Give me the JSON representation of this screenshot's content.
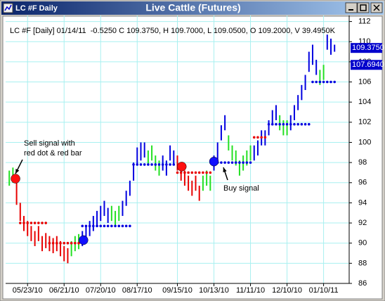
{
  "window_title": "LC #F Daily",
  "chart_data": {
    "type": "ohlc",
    "title": "Live Cattle (Futures)",
    "info": "LC #F [Daily] 01/14/11  -0.5250 C 109.3750, H 109.7000, L 109.0500, O 109.2000, V 39.4950K",
    "high": [
      97.2,
      97.5,
      96.5,
      94,
      92.7,
      92.2,
      91.7,
      91.2,
      91.7,
      90.7,
      91,
      90.7,
      90.5,
      90.7,
      90.2,
      89.7,
      89.5,
      90.2,
      90.7,
      90.9,
      91.2,
      91.7,
      92.2,
      92.7,
      93.2,
      93.7,
      94.2,
      93.5,
      93.7,
      93.2,
      93.7,
      94.2,
      95.2,
      96.2,
      98,
      99.5,
      100,
      100,
      99.2,
      99.7,
      98.7,
      98.2,
      98.7,
      98.2,
      99.7,
      99.2,
      98.7,
      97.7,
      97.2,
      96.7,
      96.2,
      96.7,
      95.7,
      96.7,
      97.2,
      96.7,
      98.7,
      100,
      101.7,
      102.7,
      100.7,
      99.7,
      99.2,
      98.2,
      98.7,
      99.2,
      99.7,
      99.7,
      100.2,
      101.2,
      101.2,
      102.2,
      103.2,
      103.7,
      102.7,
      102.2,
      102.2,
      102.7,
      103.7,
      104.7,
      105.7,
      106.7,
      109,
      109.7,
      108.2,
      107.2,
      107.7,
      110.7,
      110.3,
      109.7
    ],
    "low": [
      95.7,
      96,
      93.8,
      92.2,
      91.2,
      90.7,
      90.2,
      89.7,
      90.2,
      89.2,
      89.5,
      89.2,
      89,
      89.2,
      88.7,
      88.2,
      88,
      88.7,
      89.2,
      89.4,
      89.7,
      90.2,
      90.7,
      91.2,
      91.7,
      92.2,
      92.7,
      92,
      92.2,
      91.7,
      92.2,
      92.7,
      93.7,
      94.7,
      96.2,
      97.7,
      98.2,
      98.5,
      97.7,
      98.2,
      97.2,
      96.7,
      97.2,
      96.7,
      98.2,
      97.7,
      97.2,
      96.2,
      95.7,
      95.2,
      94.7,
      95.2,
      94.2,
      95.2,
      95.7,
      95.2,
      97.2,
      98.2,
      100.2,
      101.2,
      99.2,
      98.2,
      97.7,
      96.7,
      97.2,
      97.7,
      98.2,
      98.2,
      98.7,
      99.7,
      99.7,
      100.7,
      101.7,
      102.2,
      101.2,
      100.7,
      100.7,
      101.2,
      102.2,
      103.2,
      104.2,
      105.2,
      107,
      107.7,
      106.7,
      105.7,
      106.2,
      109.2,
      108.7,
      109
    ],
    "bar_colors": [
      "g",
      "g",
      "r",
      "r",
      "r",
      "r",
      "r",
      "r",
      "r",
      "r",
      "r",
      "r",
      "r",
      "r",
      "r",
      "r",
      "r",
      "g",
      "g",
      "g",
      "b",
      "b",
      "b",
      "b",
      "b",
      "b",
      "b",
      "b",
      "g",
      "g",
      "g",
      "b",
      "b",
      "b",
      "b",
      "b",
      "b",
      "b",
      "g",
      "g",
      "g",
      "g",
      "b",
      "b",
      "b",
      "b",
      "r",
      "r",
      "r",
      "r",
      "r",
      "r",
      "r",
      "g",
      "g",
      "g",
      "b",
      "b",
      "b",
      "b",
      "g",
      "g",
      "g",
      "g",
      "g",
      "g",
      "g",
      "b",
      "b",
      "b",
      "b",
      "b",
      "b",
      "b",
      "g",
      "g",
      "g",
      "b",
      "b",
      "b",
      "b",
      "b",
      "b",
      "b",
      "b",
      "g",
      "g",
      "b",
      "b",
      "b"
    ],
    "palette": {
      "g": "#22e022",
      "r": "#e80000",
      "b": "#0000e0"
    },
    "dots": [
      {
        "color": "#e80000",
        "values": [
          null,
          null,
          null,
          92,
          92,
          92,
          92,
          92,
          92,
          92,
          92,
          90,
          90,
          90,
          90,
          90,
          90,
          90,
          90,
          90,
          null,
          null,
          null,
          null,
          null,
          null,
          null,
          null,
          null,
          null,
          null,
          null,
          null,
          null,
          null,
          null,
          null,
          null,
          null,
          null,
          null,
          null,
          null,
          null,
          null,
          null,
          97,
          97,
          97,
          97,
          97,
          97,
          97,
          97,
          97,
          97,
          null,
          null,
          null,
          null,
          null,
          null,
          null,
          null,
          null,
          null,
          null,
          100.5,
          100.5,
          100.5,
          100.5,
          null,
          null,
          null,
          null,
          null,
          null,
          null,
          null,
          null,
          null,
          null,
          null,
          null,
          null,
          null,
          null,
          null,
          null,
          null
        ]
      },
      {
        "color": "#0000e0",
        "values": [
          null,
          null,
          null,
          null,
          null,
          null,
          null,
          null,
          null,
          null,
          null,
          null,
          null,
          null,
          null,
          null,
          null,
          null,
          null,
          null,
          91.7,
          91.7,
          91.7,
          91.7,
          91.7,
          91.7,
          91.7,
          91.7,
          91.7,
          91.7,
          91.7,
          91.7,
          91.7,
          91.7,
          97.8,
          97.8,
          97.8,
          97.8,
          97.8,
          97.8,
          97.8,
          97.8,
          97.8,
          97.8,
          97.8,
          97.8,
          null,
          null,
          null,
          null,
          null,
          null,
          null,
          null,
          null,
          null,
          98,
          98,
          98,
          98,
          98,
          98,
          98,
          98,
          98,
          98,
          98,
          null,
          null,
          null,
          null,
          101.8,
          101.8,
          101.8,
          101.8,
          101.8,
          101.8,
          101.8,
          101.8,
          101.8,
          101.8,
          101.8,
          101.8,
          106,
          106,
          106,
          106,
          106,
          106,
          106
        ]
      }
    ],
    "signals": [
      {
        "x": 1.7,
        "y": 96.4,
        "color": "#ff1010"
      },
      {
        "x": 20.3,
        "y": 90.3,
        "color": "#1010ff"
      },
      {
        "x": 47.2,
        "y": 97.6,
        "color": "#ff1010"
      },
      {
        "x": 56,
        "y": 98.1,
        "color": "#1010ff"
      }
    ],
    "annotations": [
      {
        "lines": [
          "Sell signal with",
          "red dot & red bar"
        ]
      },
      {
        "lines": [
          "Buy signal"
        ]
      }
    ],
    "price_tags": [
      {
        "value": 109.375,
        "label": "109.3750",
        "color": "#0000cc"
      },
      {
        "value": 107.694,
        "label": "107.6940",
        "color": "#0000cc"
      }
    ],
    "xlim": [
      -1,
      93
    ],
    "xticks": [
      {
        "value": 5,
        "label": "05/23/10"
      },
      {
        "value": 15,
        "label": "06/21/10"
      },
      {
        "value": 25,
        "label": "07/20/10"
      },
      {
        "value": 35,
        "label": "08/17/10"
      },
      {
        "value": 46,
        "label": "09/15/10"
      },
      {
        "value": 56,
        "label": "10/13/10"
      },
      {
        "value": 66,
        "label": "11/11/10"
      },
      {
        "value": 76,
        "label": "12/10/10"
      },
      {
        "value": 86,
        "label": "01/10/11"
      }
    ],
    "ylim": [
      86,
      112.6
    ],
    "yticks": [
      86,
      88,
      90,
      92,
      94,
      96,
      98,
      100,
      102,
      104,
      106,
      108,
      110,
      112
    ],
    "grid": true
  }
}
